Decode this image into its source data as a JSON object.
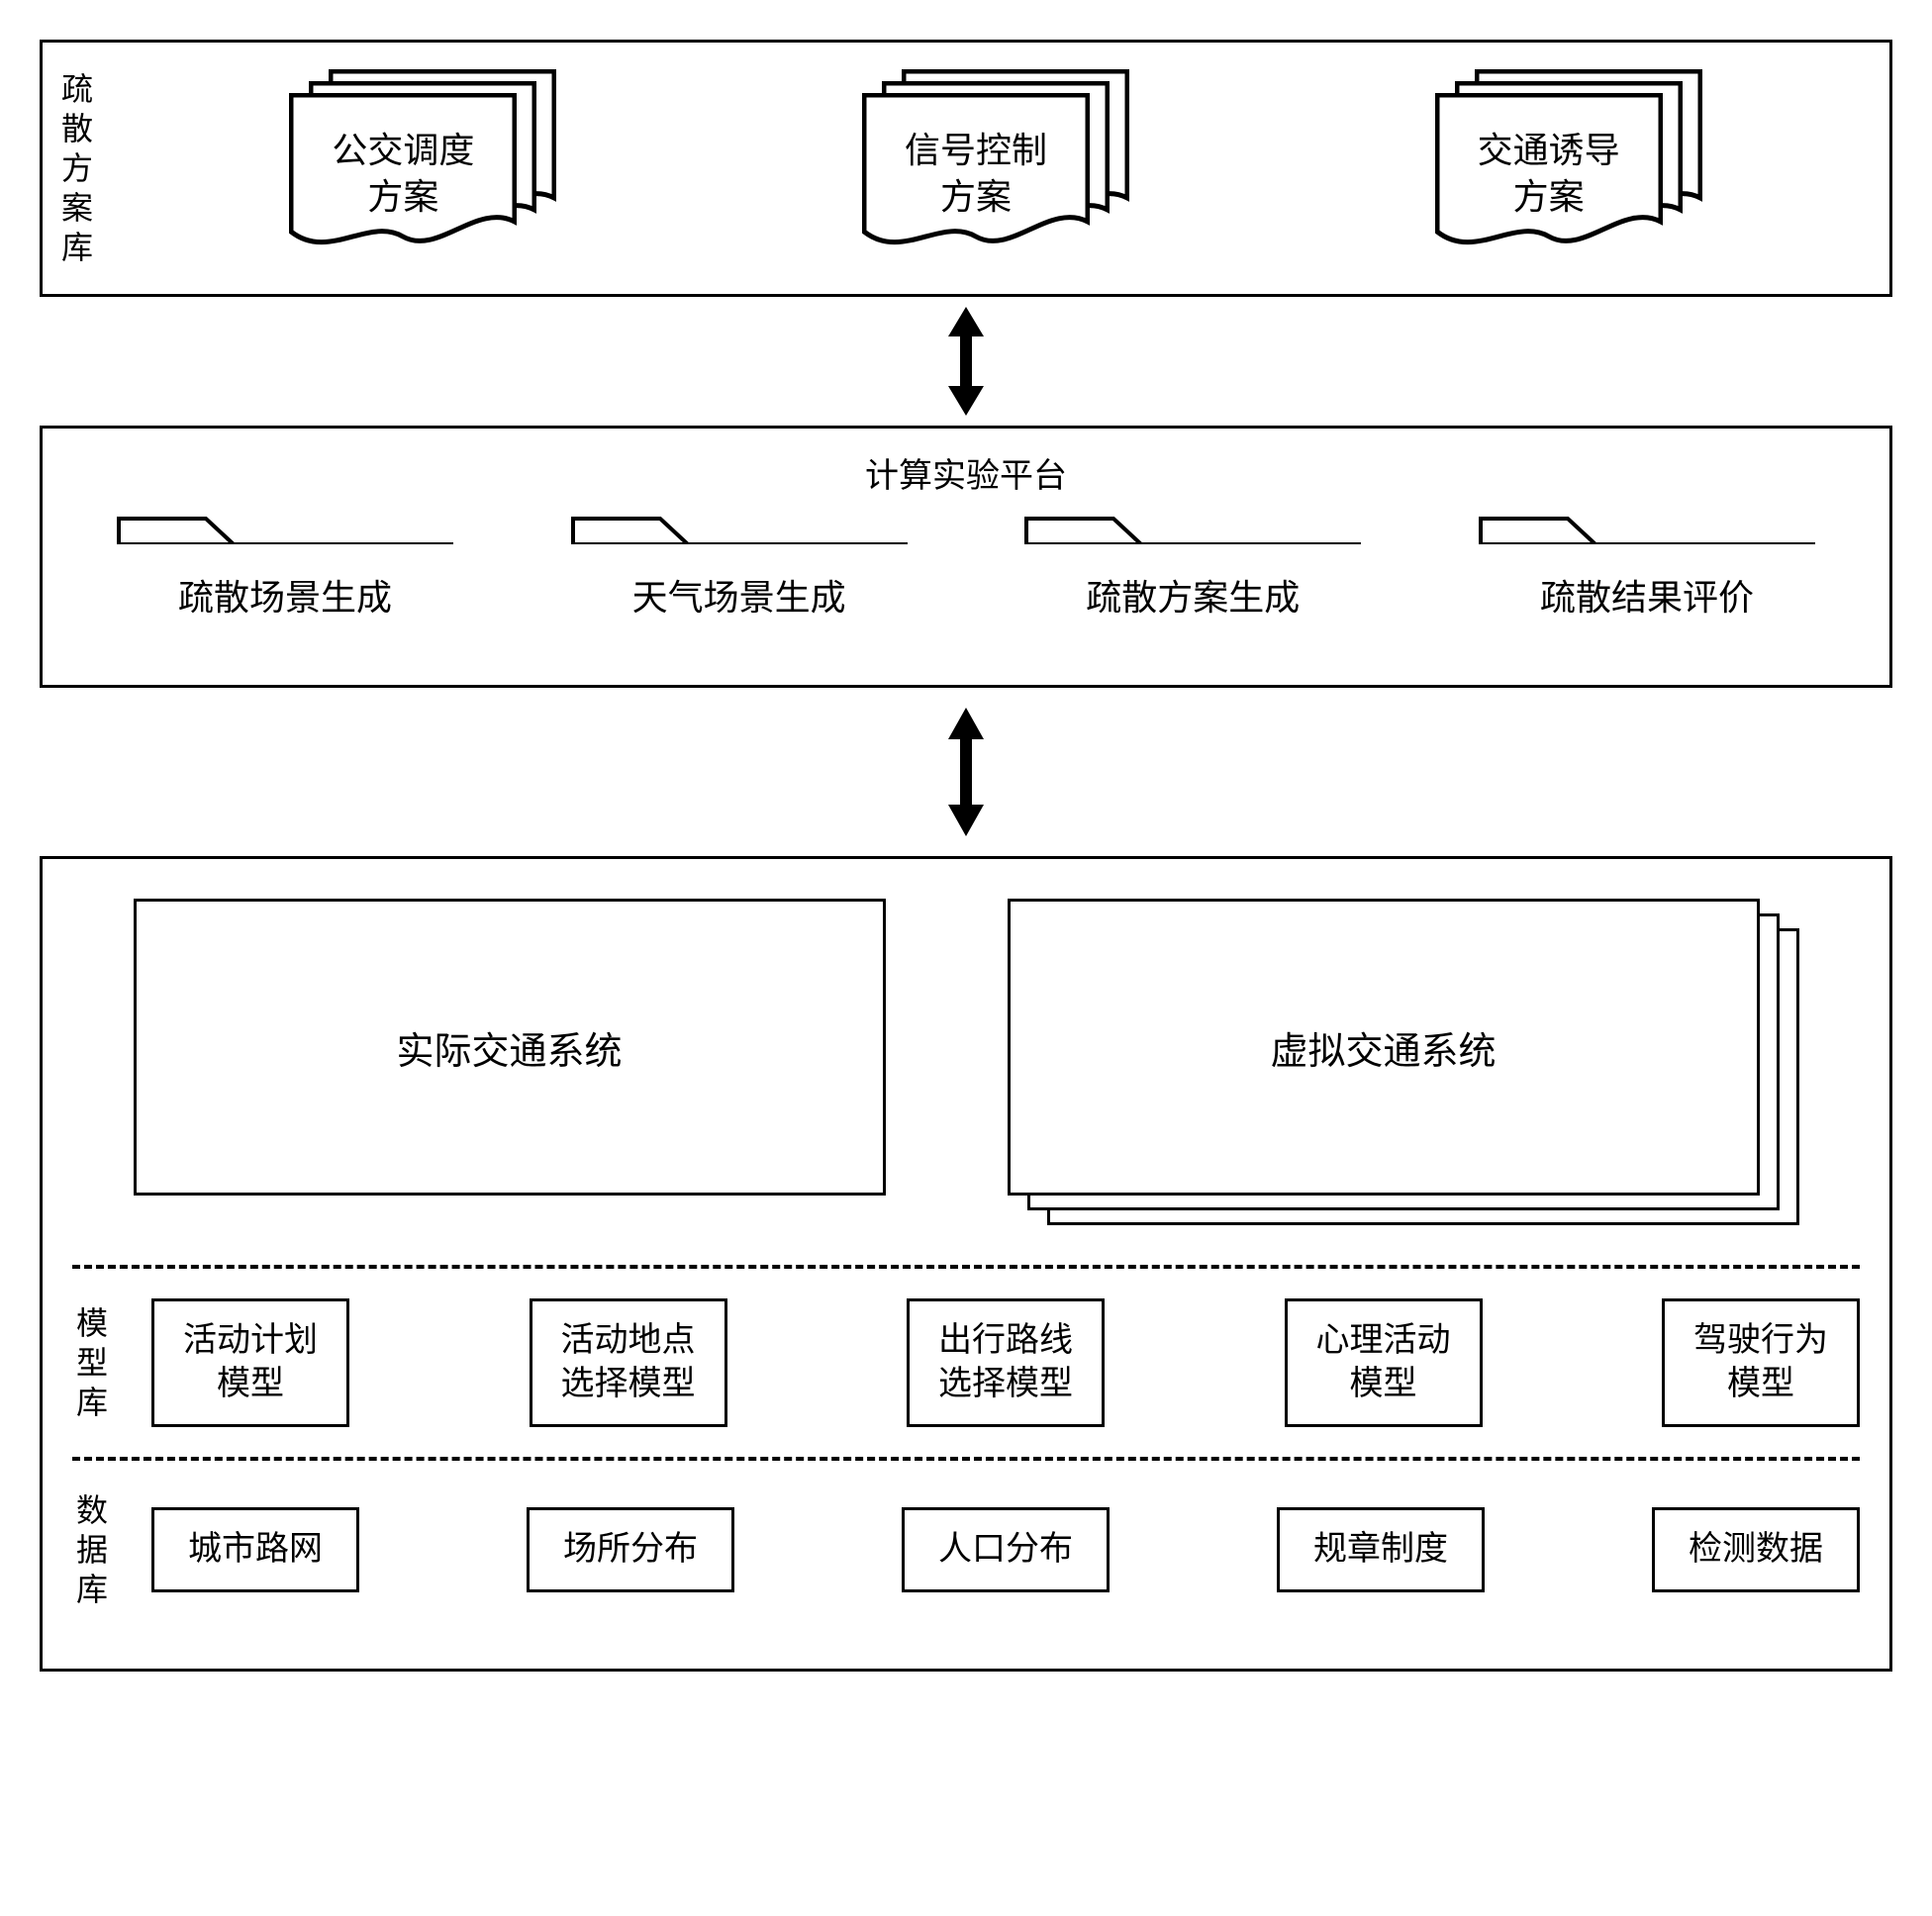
{
  "colors": {
    "stroke": "#000000",
    "bg": "#ffffff"
  },
  "top_panel": {
    "label": "疏散方案库",
    "docs": [
      {
        "line1": "公交调度",
        "line2": "方案"
      },
      {
        "line1": "信号控制",
        "line2": "方案"
      },
      {
        "line1": "交通诱导",
        "line2": "方案"
      }
    ]
  },
  "mid_panel": {
    "title": "计算实验平台",
    "folders": [
      "疏散场景生成",
      "天气场景生成",
      "疏散方案生成",
      "疏散结果评价"
    ]
  },
  "bottom_panel": {
    "systems": {
      "real": "实际交通系统",
      "virtual": "虚拟交通系统",
      "virtual_stack_count": 3
    },
    "model_lib": {
      "label": "模型库",
      "items": [
        {
          "line1": "活动计划",
          "line2": "模型"
        },
        {
          "line1": "活动地点",
          "line2": "选择模型"
        },
        {
          "line1": "出行路线",
          "line2": "选择模型"
        },
        {
          "line1": "心理活动",
          "line2": "模型"
        },
        {
          "line1": "驾驶行为",
          "line2": "模型"
        }
      ]
    },
    "data_lib": {
      "label": "数据库",
      "items": [
        "城市路网",
        "场所分布",
        "人口分布",
        "规章制度",
        "检测数据"
      ]
    }
  },
  "arrow": {
    "length": 110,
    "width": 18,
    "head": 36
  }
}
